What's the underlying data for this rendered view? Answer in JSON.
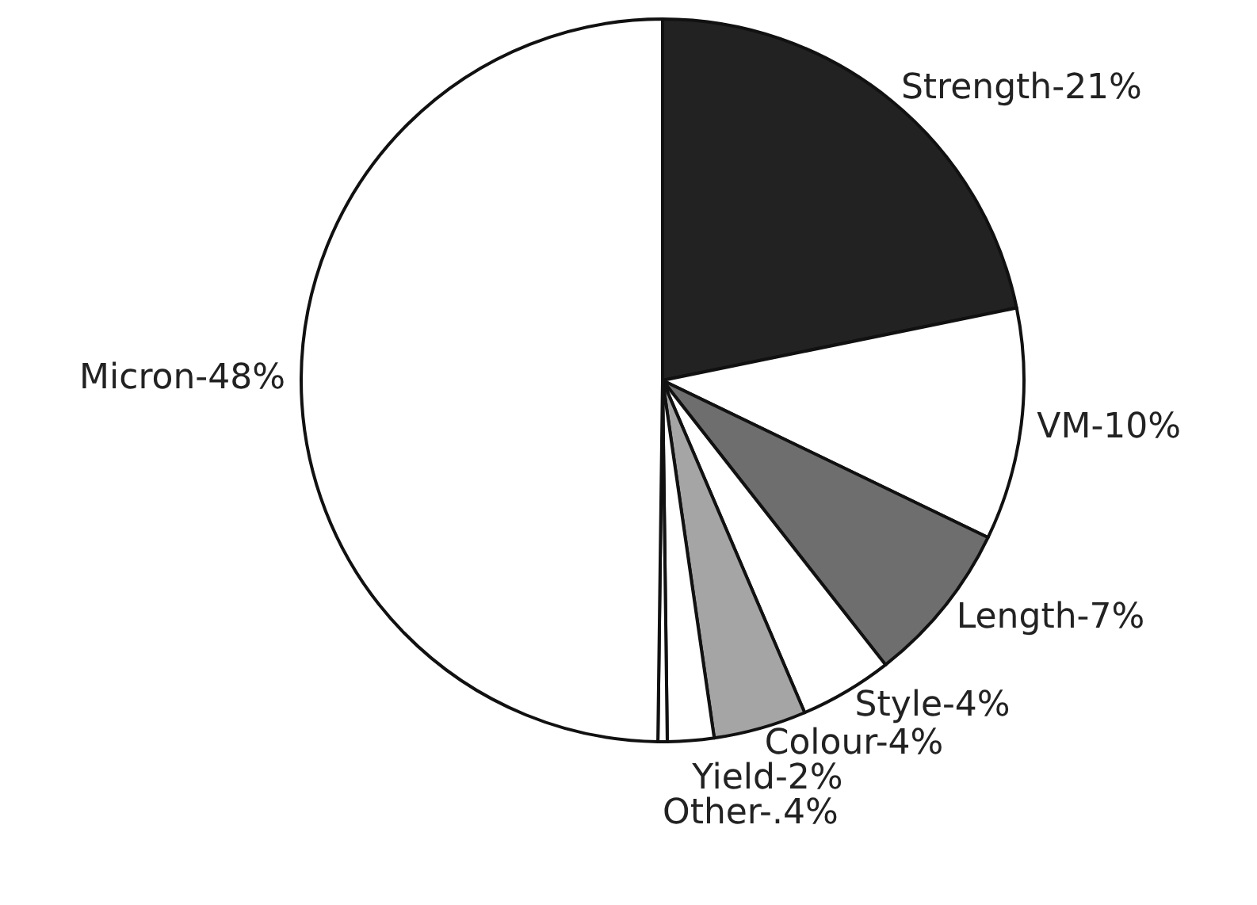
{
  "chart_data": {
    "type": "pie",
    "categories": [
      "Strength",
      "VM",
      "Length",
      "Style",
      "Colour",
      "Yield",
      "Other",
      "Micron"
    ],
    "values": [
      21,
      10,
      7,
      4,
      4,
      2,
      0.4,
      48
    ],
    "value_labels": [
      "21%",
      "10%",
      "7%",
      "4%",
      "4%",
      "2%",
      ".4%",
      "48%"
    ],
    "colors": [
      "#222222",
      "#ffffff",
      "#6e6e6e",
      "#ffffff",
      "#a5a5a5",
      "#ffffff",
      "#ffffff",
      "#ffffff"
    ]
  }
}
